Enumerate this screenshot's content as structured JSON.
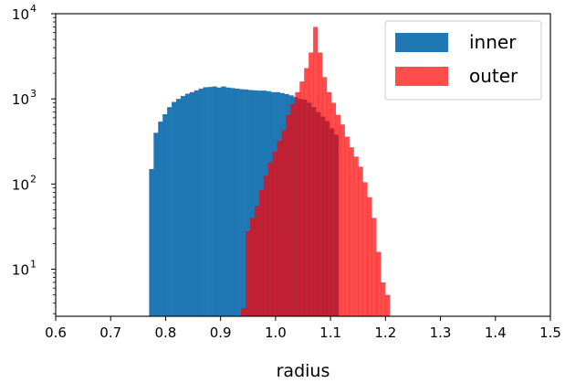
{
  "chart_data": {
    "type": "bar",
    "subtype": "overlapping-histogram",
    "title": "",
    "xlabel": "radius",
    "ylabel": "",
    "xlim": [
      0.6,
      1.5
    ],
    "ylim": [
      2.8,
      10000
    ],
    "yscale": "log",
    "grid": false,
    "legend_position": "top-right",
    "x_ticks": [
      "0.6",
      "0.7",
      "0.8",
      "0.9",
      "1.0",
      "1.1",
      "1.2",
      "1.3",
      "1.4",
      "1.5"
    ],
    "y_ticks": [
      {
        "value": 10,
        "base": "10",
        "exp": "1"
      },
      {
        "value": 100,
        "base": "10",
        "exp": "2"
      },
      {
        "value": 1000,
        "base": "10",
        "exp": "3"
      },
      {
        "value": 10000,
        "base": "10",
        "exp": "4"
      }
    ],
    "series": [
      {
        "name": "inner",
        "color": "#1f77b4",
        "opacity": 1.0,
        "bin_start": 0.77,
        "bin_width": 0.0082,
        "counts": [
          150,
          400,
          540,
          660,
          800,
          920,
          1000,
          1080,
          1150,
          1200,
          1260,
          1320,
          1370,
          1380,
          1400,
          1360,
          1400,
          1360,
          1340,
          1320,
          1300,
          1290,
          1270,
          1260,
          1250,
          1250,
          1230,
          1200,
          1200,
          1170,
          1140,
          1100,
          1050,
          1000,
          980,
          900,
          800,
          700,
          620,
          550,
          450,
          380
        ]
      },
      {
        "name": "outer",
        "color": "#ff0000",
        "opacity": 0.7,
        "bin_start": 0.9372,
        "bin_width": 0.0082,
        "counts": [
          3.5,
          28,
          40,
          55,
          85,
          125,
          180,
          240,
          320,
          430,
          650,
          880,
          1200,
          1600,
          2300,
          3500,
          7000,
          3500,
          1800,
          1200,
          900,
          650,
          500,
          360,
          270,
          210,
          160,
          105,
          70,
          40,
          16,
          7,
          5
        ]
      }
    ]
  }
}
